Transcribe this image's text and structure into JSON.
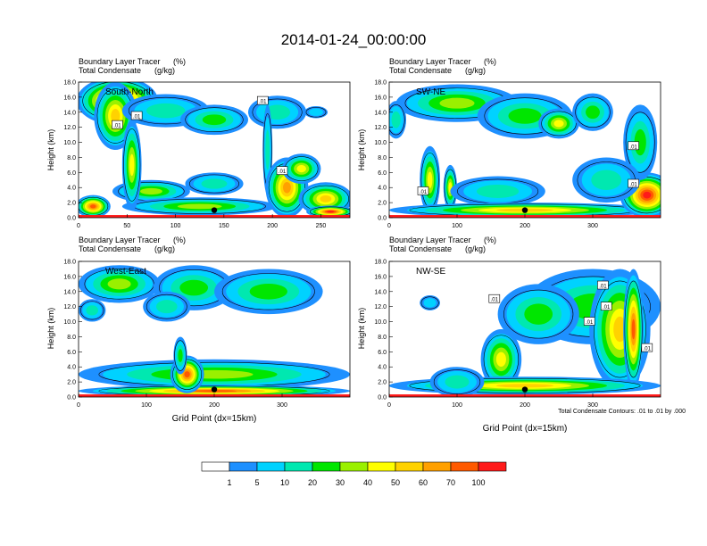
{
  "title": "2014-01-24_00:00:00",
  "colors": {
    "palette": [
      "#ffffff",
      "#1e90ff",
      "#00d2ff",
      "#00e8b0",
      "#00e600",
      "#9af000",
      "#ffff00",
      "#ffd200",
      "#ffa000",
      "#ff5a00",
      "#ff1a1a"
    ]
  },
  "chart_data": [
    {
      "type": "heatmap",
      "name": "south-north",
      "left_title": "Boundary Layer Tracer",
      "left_title_units": "(%)",
      "left_subtitle": "Total Condensate",
      "left_subtitle_units": "(g/kg)",
      "panel_label": "South-North",
      "ylabel": "Height (km)",
      "xlabel": "",
      "xlim": [
        0,
        280
      ],
      "ylim": [
        0,
        18
      ],
      "xticks": [
        "0",
        "50",
        "100",
        "150",
        "200",
        "250"
      ],
      "xtick_values": [
        0,
        50,
        100,
        150,
        200,
        250
      ],
      "yticks": [
        "0.0",
        "2.0",
        "4.0",
        "6.0",
        "8.0",
        "10.0",
        "12.0",
        "14.0",
        "16.0",
        "18.0"
      ],
      "contour_labels": [
        {
          "text": ".01",
          "x": 40,
          "y": 12.3
        },
        {
          "text": ".01",
          "x": 60,
          "y": 13.5
        },
        {
          "text": ".01",
          "x": 190,
          "y": 15.5
        },
        {
          "text": ".01",
          "x": 210,
          "y": 6.2
        }
      ],
      "marker": {
        "x": 140,
        "y": 1.0
      },
      "blobs": [
        {
          "cx": 40,
          "cy": 15.5,
          "rx": 42,
          "ry": 3.2,
          "v": 10
        },
        {
          "cx": 38,
          "cy": 13.5,
          "rx": 22,
          "ry": 4.5,
          "v": 7
        },
        {
          "cx": 90,
          "cy": 14.2,
          "rx": 45,
          "ry": 2.2,
          "v": 3
        },
        {
          "cx": 140,
          "cy": 13.0,
          "rx": 35,
          "ry": 2.0,
          "v": 4
        },
        {
          "cx": 140,
          "cy": 4.5,
          "rx": 30,
          "ry": 1.5,
          "v": 3
        },
        {
          "cx": 75,
          "cy": 3.5,
          "rx": 40,
          "ry": 1.5,
          "v": 5
        },
        {
          "cx": 125,
          "cy": 1.5,
          "rx": 80,
          "ry": 1.2,
          "v": 5
        },
        {
          "cx": 55,
          "cy": 7.0,
          "rx": 10,
          "ry": 6.0,
          "v": 6
        },
        {
          "cx": 205,
          "cy": 14.0,
          "rx": 30,
          "ry": 2.2,
          "v": 3
        },
        {
          "cx": 195,
          "cy": 9.0,
          "rx": 5,
          "ry": 6.0,
          "v": 3
        },
        {
          "cx": 215,
          "cy": 4.0,
          "rx": 22,
          "ry": 4.0,
          "v": 8
        },
        {
          "cx": 230,
          "cy": 6.5,
          "rx": 20,
          "ry": 2.0,
          "v": 6
        },
        {
          "cx": 255,
          "cy": 2.5,
          "rx": 28,
          "ry": 2.2,
          "v": 7
        },
        {
          "cx": 260,
          "cy": 0.8,
          "rx": 25,
          "ry": 0.8,
          "v": 10
        },
        {
          "cx": 15,
          "cy": 1.5,
          "rx": 18,
          "ry": 1.5,
          "v": 9
        },
        {
          "cx": 245,
          "cy": 14.0,
          "rx": 12,
          "ry": 0.8,
          "v": 2
        }
      ]
    },
    {
      "type": "heatmap",
      "name": "sw-ne",
      "left_title": "Boundary Layer Tracer",
      "left_title_units": "(%)",
      "left_subtitle": "Total Condensate",
      "left_subtitle_units": "(g/kg)",
      "panel_label": "SW-NE",
      "ylabel": "Height (km)",
      "xlabel": "",
      "xlim": [
        0,
        400
      ],
      "ylim": [
        0,
        18
      ],
      "xticks": [
        "0",
        "100",
        "200",
        "300"
      ],
      "xtick_values": [
        0,
        100,
        200,
        300
      ],
      "yticks": [
        "0.0",
        "2.0",
        "4.0",
        "6.0",
        "8.0",
        "10.0",
        "12.0",
        "14.0",
        "16.0",
        "18.0"
      ],
      "contour_labels": [
        {
          "text": ".01",
          "x": 50,
          "y": 3.5
        },
        {
          "text": ".01",
          "x": 360,
          "y": 9.5
        },
        {
          "text": ".01",
          "x": 360,
          "y": 4.5
        }
      ],
      "marker": {
        "x": 200,
        "y": 1.0
      },
      "blobs": [
        {
          "cx": 100,
          "cy": 15.2,
          "rx": 90,
          "ry": 2.5,
          "v": 5
        },
        {
          "cx": 200,
          "cy": 13.5,
          "rx": 70,
          "ry": 3.0,
          "v": 4
        },
        {
          "cx": 250,
          "cy": 12.5,
          "rx": 30,
          "ry": 2.0,
          "v": 6
        },
        {
          "cx": 60,
          "cy": 5.0,
          "rx": 15,
          "ry": 4.5,
          "v": 6
        },
        {
          "cx": 90,
          "cy": 4.0,
          "rx": 10,
          "ry": 3.0,
          "v": 6
        },
        {
          "cx": 160,
          "cy": 3.5,
          "rx": 70,
          "ry": 2.0,
          "v": 3
        },
        {
          "cx": 200,
          "cy": 1.0,
          "rx": 200,
          "ry": 1.0,
          "v": 7
        },
        {
          "cx": 380,
          "cy": 3.0,
          "rx": 40,
          "ry": 3.0,
          "v": 10
        },
        {
          "cx": 370,
          "cy": 10.0,
          "rx": 25,
          "ry": 5.0,
          "v": 4
        },
        {
          "cx": 320,
          "cy": 5.0,
          "rx": 50,
          "ry": 3.0,
          "v": 3
        },
        {
          "cx": 10,
          "cy": 13.0,
          "rx": 15,
          "ry": 2.5,
          "v": 3
        },
        {
          "cx": 300,
          "cy": 14.0,
          "rx": 30,
          "ry": 2.5,
          "v": 4
        }
      ]
    },
    {
      "type": "heatmap",
      "name": "west-east",
      "left_title": "Boundary Layer Tracer",
      "left_title_units": "(%)",
      "left_subtitle": "Total Condensate",
      "left_subtitle_units": "(g/kg)",
      "panel_label": "West-East",
      "ylabel": "Height (km)",
      "xlabel": "Grid Point (dx=15km)",
      "xlim": [
        0,
        400
      ],
      "ylim": [
        0,
        18
      ],
      "xticks": [
        "0",
        "100",
        "200",
        "300"
      ],
      "xtick_values": [
        0,
        100,
        200,
        300
      ],
      "yticks": [
        "0.0",
        "2.0",
        "4.0",
        "6.0",
        "8.0",
        "10.0",
        "12.0",
        "14.0",
        "16.0",
        "18.0"
      ],
      "contour_labels": [],
      "marker": {
        "x": 200,
        "y": 1.0
      },
      "blobs": [
        {
          "cx": 60,
          "cy": 15.0,
          "rx": 60,
          "ry": 2.5,
          "v": 5
        },
        {
          "cx": 170,
          "cy": 14.5,
          "rx": 60,
          "ry": 3.0,
          "v": 4
        },
        {
          "cx": 280,
          "cy": 14.0,
          "rx": 80,
          "ry": 3.0,
          "v": 4
        },
        {
          "cx": 20,
          "cy": 11.5,
          "rx": 20,
          "ry": 1.5,
          "v": 3
        },
        {
          "cx": 130,
          "cy": 12.0,
          "rx": 35,
          "ry": 2.0,
          "v": 3
        },
        {
          "cx": 200,
          "cy": 3.0,
          "rx": 200,
          "ry": 2.0,
          "v": 5
        },
        {
          "cx": 200,
          "cy": 0.8,
          "rx": 200,
          "ry": 0.8,
          "v": 9
        },
        {
          "cx": 160,
          "cy": 3.0,
          "rx": 25,
          "ry": 2.5,
          "v": 9
        },
        {
          "cx": 150,
          "cy": 5.5,
          "rx": 10,
          "ry": 2.5,
          "v": 4
        }
      ]
    },
    {
      "type": "heatmap",
      "name": "nw-se",
      "left_title": "Boundary Layer Tracer",
      "left_title_units": "(%)",
      "left_subtitle": "Total Condensate",
      "left_subtitle_units": "(g/kg)",
      "panel_label": "NW-SE",
      "ylabel": "Height (km)",
      "xlabel": "Grid Point (dx=15km)",
      "xlim": [
        0,
        400
      ],
      "ylim": [
        0,
        18
      ],
      "xticks": [
        "0",
        "100",
        "200",
        "300"
      ],
      "xtick_values": [
        0,
        100,
        200,
        300
      ],
      "yticks": [
        "0.0",
        "2.0",
        "4.0",
        "6.0",
        "8.0",
        "10.0",
        "12.0",
        "14.0",
        "16.0",
        "18.0"
      ],
      "contour_labels": [
        {
          "text": ".01",
          "x": 155,
          "y": 13.0
        },
        {
          "text": ".01",
          "x": 315,
          "y": 14.8
        },
        {
          "text": ".01",
          "x": 320,
          "y": 12.0
        },
        {
          "text": ".01",
          "x": 295,
          "y": 10.0
        },
        {
          "text": ".01",
          "x": 380,
          "y": 6.5
        }
      ],
      "marker": {
        "x": 200,
        "y": 1.0
      },
      "footnote": "Total Condensate Contours: .01 to .01 by .000",
      "blobs": [
        {
          "cx": 300,
          "cy": 12.0,
          "rx": 100,
          "ry": 5.0,
          "v": 4
        },
        {
          "cx": 340,
          "cy": 9.0,
          "rx": 45,
          "ry": 8.0,
          "v": 7
        },
        {
          "cx": 360,
          "cy": 9.0,
          "rx": 15,
          "ry": 8.0,
          "v": 9
        },
        {
          "cx": 220,
          "cy": 11.0,
          "rx": 60,
          "ry": 4.0,
          "v": 4
        },
        {
          "cx": 165,
          "cy": 5.0,
          "rx": 30,
          "ry": 4.0,
          "v": 6
        },
        {
          "cx": 200,
          "cy": 1.5,
          "rx": 200,
          "ry": 1.2,
          "v": 7
        },
        {
          "cx": 100,
          "cy": 2.0,
          "rx": 40,
          "ry": 2.0,
          "v": 3
        },
        {
          "cx": 60,
          "cy": 12.5,
          "rx": 15,
          "ry": 1.0,
          "v": 2
        }
      ]
    }
  ],
  "legend": {
    "labels": [
      "1",
      "5",
      "10",
      "20",
      "30",
      "40",
      "50",
      "60",
      "70",
      "100"
    ]
  }
}
